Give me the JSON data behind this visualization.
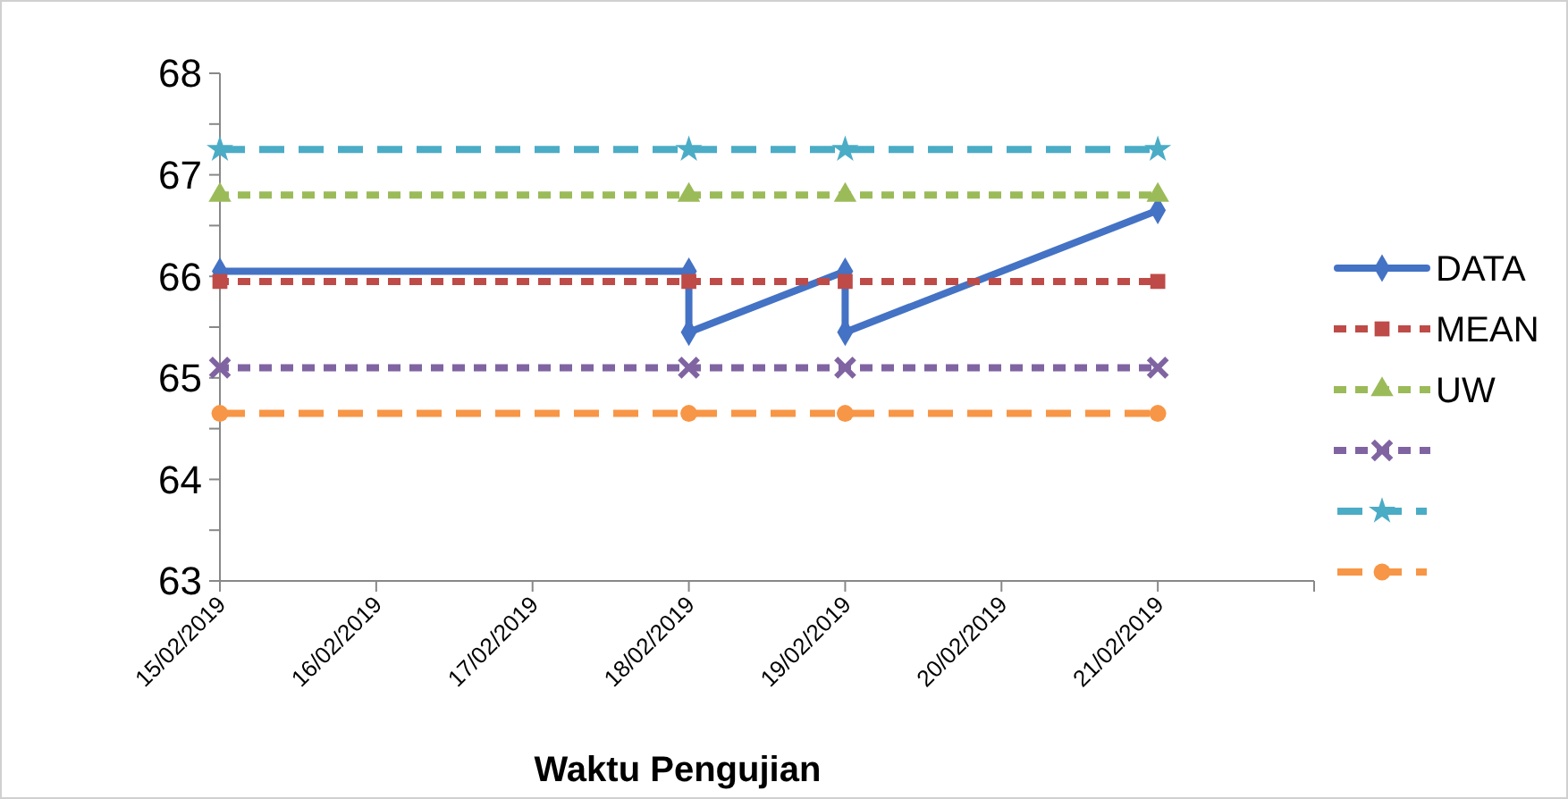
{
  "chart_data": {
    "type": "line",
    "xlabel": "Waktu Pengujian",
    "xlim": [
      "2019-02-15",
      "2019-02-22"
    ],
    "xticks": [
      {
        "value": "2019-02-15",
        "label": "15/02/2019"
      },
      {
        "value": "2019-02-16",
        "label": "16/02/2019"
      },
      {
        "value": "2019-02-17",
        "label": "17/02/2019"
      },
      {
        "value": "2019-02-18",
        "label": "18/02/2019"
      },
      {
        "value": "2019-02-19",
        "label": "19/02/2019"
      },
      {
        "value": "2019-02-20",
        "label": "20/02/2019"
      },
      {
        "value": "2019-02-21",
        "label": "21/02/2019"
      },
      {
        "value": "2019-02-22",
        "label": null
      }
    ],
    "ylim": [
      63,
      68
    ],
    "yticks": [
      63,
      {
        "value": 63.5,
        "label": null
      },
      64,
      {
        "value": 64.5,
        "label": null
      },
      65,
      {
        "value": 65.5,
        "label": null
      },
      66,
      {
        "value": 66.5,
        "label": null
      },
      67,
      {
        "value": 67.5,
        "label": null
      },
      68
    ],
    "grid": false,
    "legend": "right",
    "series": [
      {
        "name": "DATA",
        "color": "#4472c4",
        "marker": "diamond",
        "line_style": "solid",
        "x": [
          "2019-02-15",
          "2019-02-18",
          "2019-02-18",
          "2019-02-19",
          "2019-02-19",
          "2019-02-21"
        ],
        "values": [
          66.05,
          66.05,
          65.45,
          66.05,
          65.45,
          66.65
        ]
      },
      {
        "name": "MEAN",
        "color": "#be4b48",
        "marker": "square",
        "line_style": "dotted",
        "x": [
          "2019-02-15",
          "2019-02-18",
          "2019-02-19",
          "2019-02-21"
        ],
        "values": [
          65.95,
          65.95,
          65.95,
          65.95
        ]
      },
      {
        "name": "UW",
        "color": "#9bbb59",
        "marker": "triangle",
        "line_style": "dotted",
        "x": [
          "2019-02-15",
          "2019-02-18",
          "2019-02-19",
          "2019-02-21"
        ],
        "values": [
          66.8,
          66.8,
          66.8,
          66.8
        ]
      },
      {
        "color": "#8064a2",
        "marker": "cross",
        "line_style": "dotted",
        "x": [
          "2019-02-15",
          "2019-02-18",
          "2019-02-19",
          "2019-02-21"
        ],
        "values": [
          65.1,
          65.1,
          65.1,
          65.1
        ]
      },
      {
        "color": "#4bacc6",
        "marker": "star",
        "line_style": "dashed",
        "x": [
          "2019-02-15",
          "2019-02-18",
          "2019-02-19",
          "2019-02-21"
        ],
        "values": [
          67.25,
          67.25,
          67.25,
          67.25
        ]
      },
      {
        "color": "#f79646",
        "marker": "circle",
        "line_style": "dashed",
        "x": [
          "2019-02-15",
          "2019-02-18",
          "2019-02-19",
          "2019-02-21"
        ],
        "values": [
          64.65,
          64.65,
          64.65,
          64.65
        ]
      }
    ]
  }
}
